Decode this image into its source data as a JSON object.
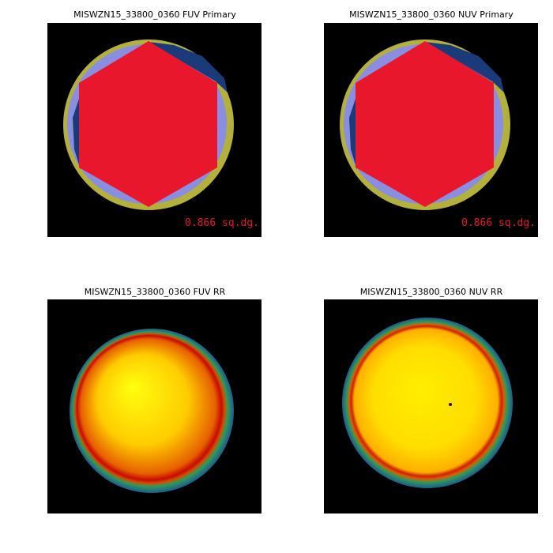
{
  "panels": [
    {
      "title": "MISWZN15_33800_0360 FUV Primary",
      "area_label": "0.866 sq.dg."
    },
    {
      "title": "MISWZN15_33800_0360 NUV Primary",
      "area_label": "0.866 sq.dg."
    },
    {
      "title": "MISWZN15_33800_0360 FUV RR"
    },
    {
      "title": "MISWZN15_33800_0360 NUV RR"
    }
  ]
}
